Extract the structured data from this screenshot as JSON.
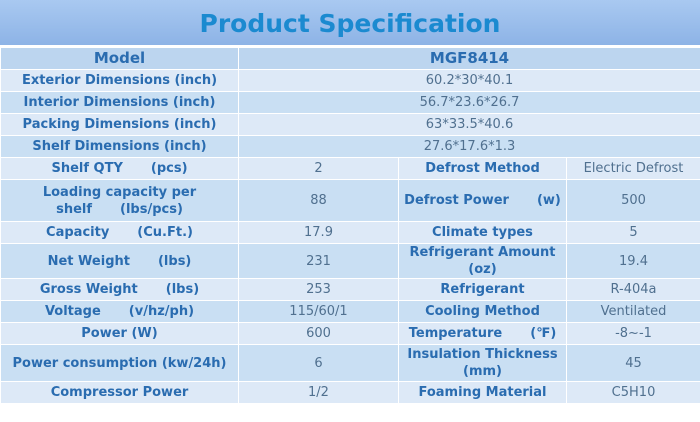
{
  "header": {
    "title": "Product Specification"
  },
  "table": {
    "rows": [
      [
        "Model",
        "MGF8414"
      ],
      [
        "Exterior Dimensions (inch)",
        "60.2*30*40.1"
      ],
      [
        "Interior Dimensions (inch)",
        "56.7*23.6*26.7"
      ],
      [
        "Packing Dimensions (inch)",
        "63*33.5*40.6"
      ],
      [
        "Shelf Dimensions (inch)",
        "27.6*17.6*1.3"
      ],
      [
        [
          "Shelf QTY",
          "(pcs)"
        ],
        "2",
        "Defrost Method",
        "Electric Defrost"
      ],
      [
        [
          "Loading capacity per shelf",
          "(lbs/pcs)"
        ],
        "88",
        [
          "Defrost Power",
          "(w)"
        ],
        "500"
      ],
      [
        [
          "Capacity",
          "(Cu.Ft.)"
        ],
        "17.9",
        "Climate types",
        "5"
      ],
      [
        [
          "Net Weight",
          "(lbs)"
        ],
        "231",
        "Refrigerant Amount (oz)",
        "19.4"
      ],
      [
        [
          "Gross Weight",
          "(lbs)"
        ],
        "253",
        "Refrigerant",
        "R-404a"
      ],
      [
        [
          "Voltage",
          "(v/hz/ph)"
        ],
        "115/60/1",
        "Cooling Method",
        "Ventilated"
      ],
      [
        "Power (W)",
        "600",
        [
          "Temperature",
          "(℉)"
        ],
        "-8~-1"
      ],
      [
        "Power consumption (kw/24h)",
        "6",
        "Insulation Thickness (mm)",
        "45"
      ],
      [
        "Compressor Power",
        "1/2",
        "Foaming Material",
        "C5H10"
      ]
    ]
  }
}
